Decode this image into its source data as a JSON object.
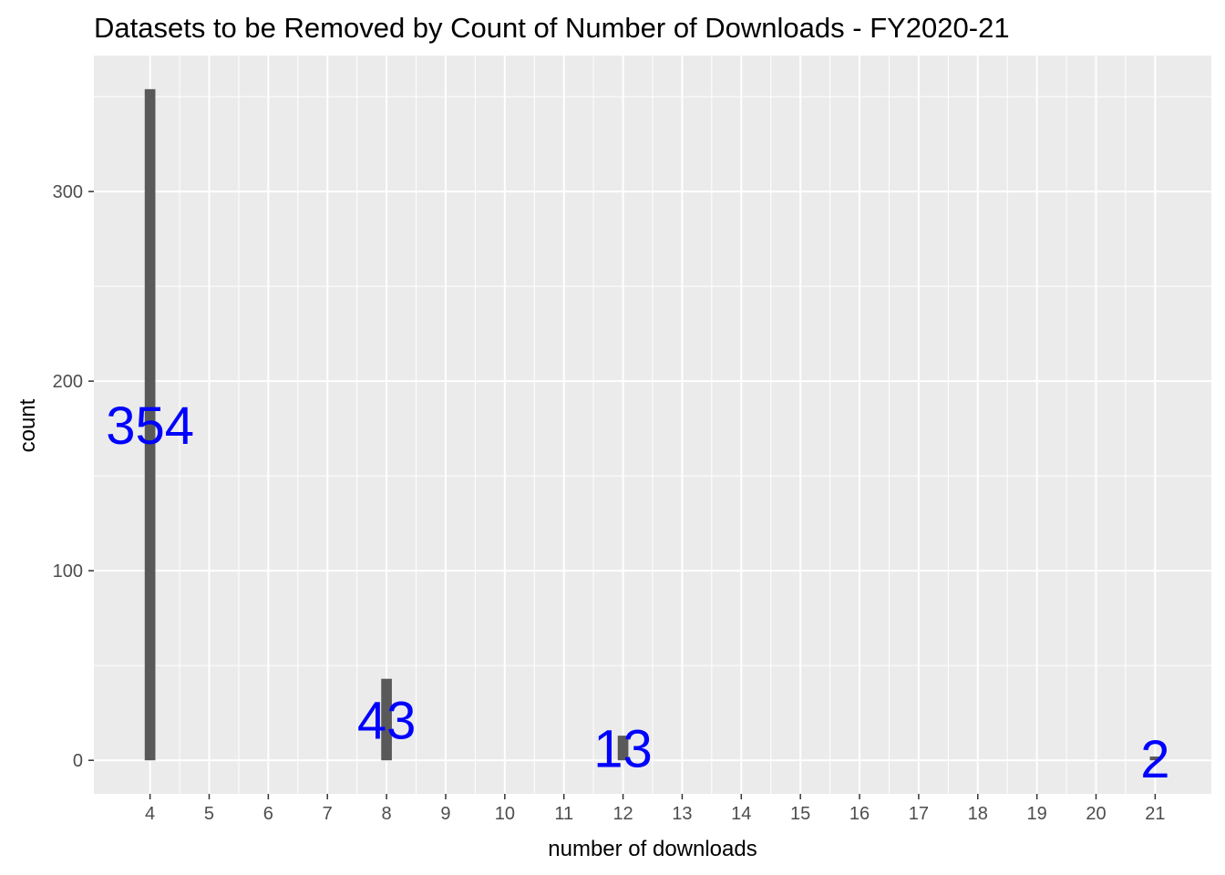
{
  "chart_data": {
    "type": "bar",
    "title": "Datasets to be Removed by Count of Number of Downloads - FY2020-21",
    "xlabel": "number of downloads",
    "ylabel": "count",
    "x": [
      4,
      8,
      12,
      21
    ],
    "values": [
      354,
      43,
      13,
      2
    ],
    "data_labels": [
      "354",
      "43",
      "13",
      "2"
    ],
    "x_ticks": [
      4,
      5,
      6,
      7,
      8,
      9,
      10,
      11,
      12,
      13,
      14,
      15,
      16,
      17,
      18,
      19,
      20,
      21
    ],
    "y_ticks": [
      0,
      100,
      200,
      300
    ],
    "xlim": [
      3.05,
      21.95
    ],
    "ylim": [
      -17.7,
      371.7
    ],
    "grid": true,
    "colors": {
      "panel": "#ebebeb",
      "grid": "#ffffff",
      "bar": "#595959",
      "data_label": "#0000ff",
      "tick_label": "#4d4d4d"
    }
  }
}
